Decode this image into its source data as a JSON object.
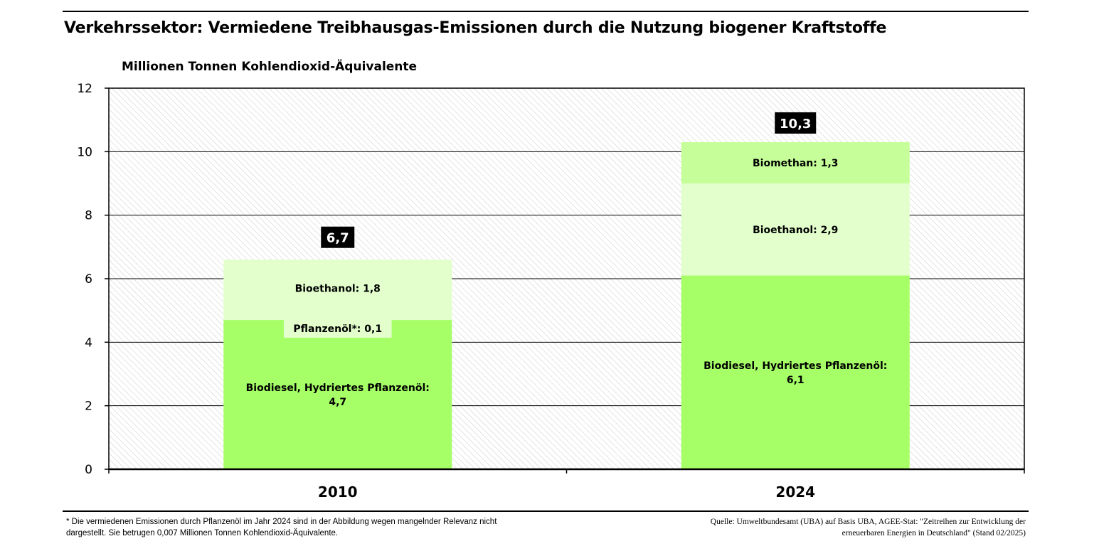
{
  "title": "Verkehrssektor: Vermiedene Treibhausgas-Emissionen durch die Nutzung biogener Kraftstoffe",
  "footnote": "* Die vermiedenen Emissionen durch Pflanzenöl im Jahr 2024 sind in der Abbildung wegen mangelnder Relevanz nicht dargestellt. Sie betrugen 0,007 Millionen Tonnen Kohlendioxid-Äquivalente.",
  "source": "Quelle: Umweltbundesamt (UBA) auf Basis UBA, AGEE-Stat: \"Zeitreihen zur Entwicklung der erneuerbaren Energien in Deutschland\" (Stand 02/2025)",
  "chart_data": {
    "type": "bar",
    "stacked": true,
    "ylabel": "Millionen Tonnen Kohlendioxid-Äquivalente",
    "ylim": [
      0,
      12
    ],
    "yticks": [
      0,
      2,
      4,
      6,
      8,
      10,
      12
    ],
    "categories": [
      "2010",
      "2024"
    ],
    "totals": [
      6.7,
      10.3
    ],
    "total_labels": [
      "6,7",
      "10,3"
    ],
    "grid": true,
    "colors": {
      "biodiesel": "#a6ff66",
      "pflanzenoel": "#e2ffcc",
      "bioethanol": "#e2ffcc",
      "biomethan": "#c6ff99"
    },
    "segments": [
      [
        {
          "key": "biodiesel",
          "value": 4.7,
          "label": [
            "Biodiesel, Hydriertes Pflanzenöl:",
            "4,7"
          ],
          "label_position": "center"
        },
        {
          "key": "pflanzenoel",
          "value": 0.1,
          "label": [
            "Pflanzenöl*: 0,1"
          ],
          "label_position": "callout"
        },
        {
          "key": "bioethanol",
          "value": 1.8,
          "label": [
            "Bioethanol: 1,8"
          ],
          "label_position": "center"
        }
      ],
      [
        {
          "key": "biodiesel",
          "value": 6.1,
          "label": [
            "Biodiesel, Hydriertes Pflanzenöl:",
            "6,1"
          ],
          "label_position": "center"
        },
        {
          "key": "bioethanol",
          "value": 2.9,
          "label": [
            "Bioethanol: 2,9"
          ],
          "label_position": "center"
        },
        {
          "key": "biomethan",
          "value": 1.3,
          "label": [
            "Biomethan: 1,3"
          ],
          "label_position": "center"
        }
      ]
    ]
  }
}
